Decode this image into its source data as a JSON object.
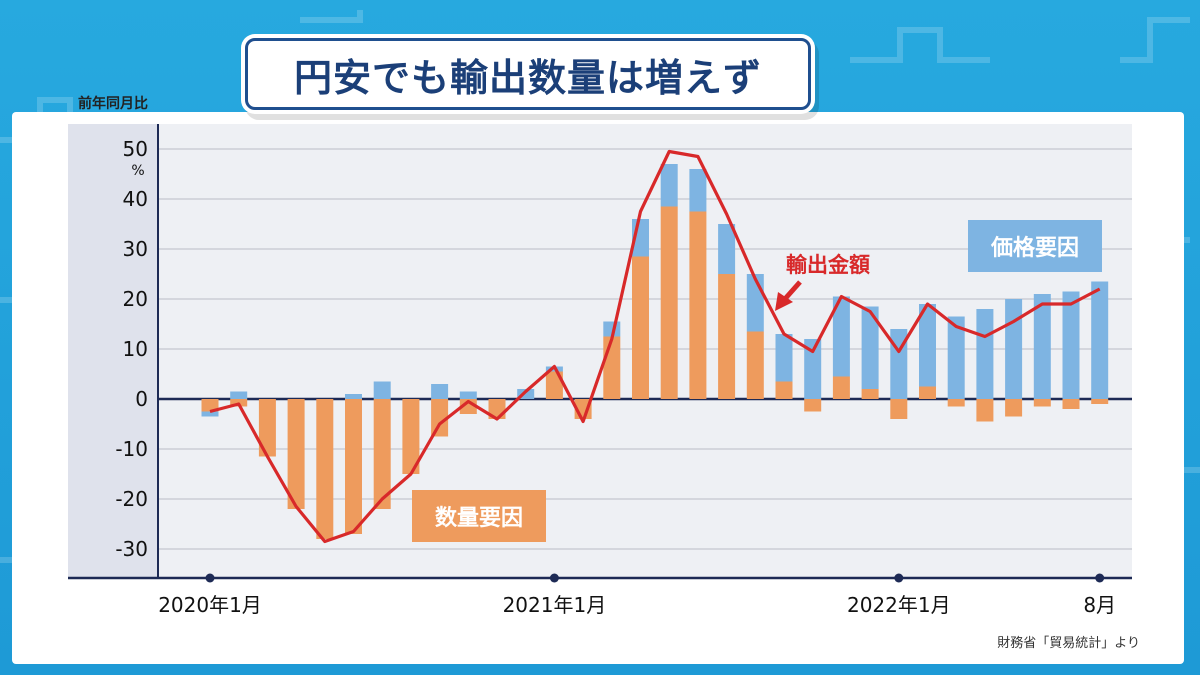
{
  "title": "円安でも輸出数量は増えず",
  "unit_label": "前年同月比",
  "source": "財務省「貿易統計」より",
  "colors": {
    "price": "#7eb4e2",
    "quantity": "#ee9b5d",
    "line": "#d8292a",
    "title": "#1b3f78"
  },
  "chart_data": {
    "type": "bar",
    "ylabel": "%",
    "ylim": [
      -35,
      55
    ],
    "yticks": [
      50,
      40,
      30,
      20,
      10,
      0,
      -10,
      -20,
      -30
    ],
    "x_tick_labels": [
      {
        "index": 0,
        "label": "2020年1月"
      },
      {
        "index": 12,
        "label": "2021年1月"
      },
      {
        "index": 24,
        "label": "2022年1月"
      },
      {
        "index": 31,
        "label": "8月"
      }
    ],
    "categories": [
      "2020-01",
      "2020-02",
      "2020-03",
      "2020-04",
      "2020-05",
      "2020-06",
      "2020-07",
      "2020-08",
      "2020-09",
      "2020-10",
      "2020-11",
      "2020-12",
      "2021-01",
      "2021-02",
      "2021-03",
      "2021-04",
      "2021-05",
      "2021-06",
      "2021-07",
      "2021-08",
      "2021-09",
      "2021-10",
      "2021-11",
      "2021-12",
      "2022-01",
      "2022-02",
      "2022-03",
      "2022-04",
      "2022-05",
      "2022-06",
      "2022-07",
      "2022-08"
    ],
    "series": [
      {
        "name": "数量要因",
        "values": [
          -2.5,
          -1.5,
          -11.5,
          -22,
          -28,
          -27,
          -22,
          -15,
          -7.5,
          -3,
          -4,
          0,
          5.5,
          -4,
          12.5,
          28.5,
          38.5,
          37.5,
          25,
          13.5,
          3.5,
          -2.5,
          4.5,
          2,
          -4,
          2.5,
          -1.5,
          -4.5,
          -3.5,
          -1.5,
          -2,
          -1
        ]
      },
      {
        "name": "価格要因",
        "values": [
          -1,
          1.5,
          0,
          0,
          0,
          1,
          3.5,
          0,
          3,
          1.5,
          0,
          2,
          1,
          0,
          3,
          7.5,
          8.5,
          8.5,
          10,
          11.5,
          9.5,
          12,
          16,
          16.5,
          14,
          16.5,
          16.5,
          18,
          20,
          21,
          21.5,
          23.5
        ]
      },
      {
        "name": "輸出金額",
        "values": [
          -2.5,
          -1,
          -11.5,
          -21.5,
          -28.5,
          -26.5,
          -20,
          -15,
          -5,
          -0.5,
          -4,
          1.5,
          6.5,
          -4.5,
          12,
          37.5,
          49.5,
          48.5,
          37,
          24,
          13,
          9.5,
          20.5,
          17.5,
          9.5,
          19,
          14.5,
          12.5,
          15.5,
          19,
          19,
          22
        ]
      }
    ],
    "annotations": [
      "輸出金額",
      "価格要因",
      "数量要因"
    ],
    "grid": true
  }
}
